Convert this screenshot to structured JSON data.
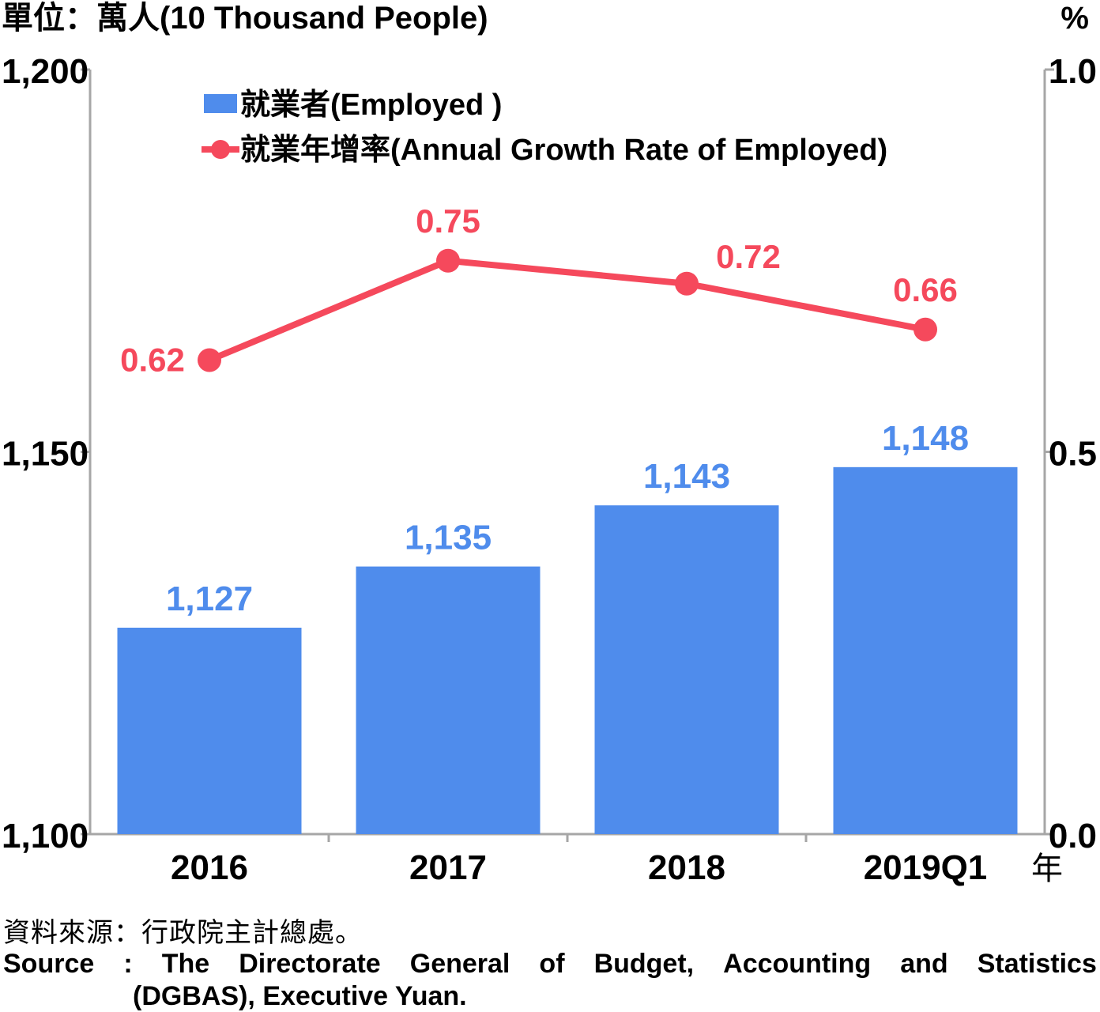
{
  "chart_data": {
    "type": "bar+line",
    "unit_left": "單位：萬人(10 Thousand People)",
    "unit_right": "%",
    "x_suffix": "年",
    "categories": [
      "2016",
      "2017",
      "2018",
      "2019Q1"
    ],
    "left_axis": {
      "min": 1100,
      "max": 1200,
      "ticks": [
        "1,100",
        "1,150",
        "1,200"
      ],
      "tick_values": [
        1100,
        1150,
        1200
      ]
    },
    "right_axis": {
      "min": 0.0,
      "max": 1.0,
      "ticks": [
        "0.0",
        "0.5",
        "1.0"
      ],
      "tick_values": [
        0.0,
        0.5,
        1.0
      ]
    },
    "series": [
      {
        "name": "就業者(Employed )",
        "type": "bar",
        "axis": "left",
        "color": "#4f8cec",
        "values": [
          1127,
          1135,
          1143,
          1148
        ],
        "labels": [
          "1,127",
          "1,135",
          "1,143",
          "1,148"
        ]
      },
      {
        "name": "就業年增率(Annual Growth Rate of Employed)",
        "type": "line",
        "axis": "right",
        "color": "#f5495c",
        "values": [
          0.62,
          0.75,
          0.72,
          0.66
        ],
        "labels": [
          "0.62",
          "0.75",
          "0.72",
          "0.66"
        ]
      }
    ],
    "legend_position": "top-left",
    "grid": false
  },
  "source": {
    "zh": "資料來源：行政院主計總處。",
    "en_words": [
      "Source",
      ":",
      "The",
      "Directorate",
      "General",
      "of",
      "Budget,",
      "Accounting",
      "and",
      "Statistics"
    ],
    "en_line2": "(DGBAS), Executive Yuan."
  }
}
